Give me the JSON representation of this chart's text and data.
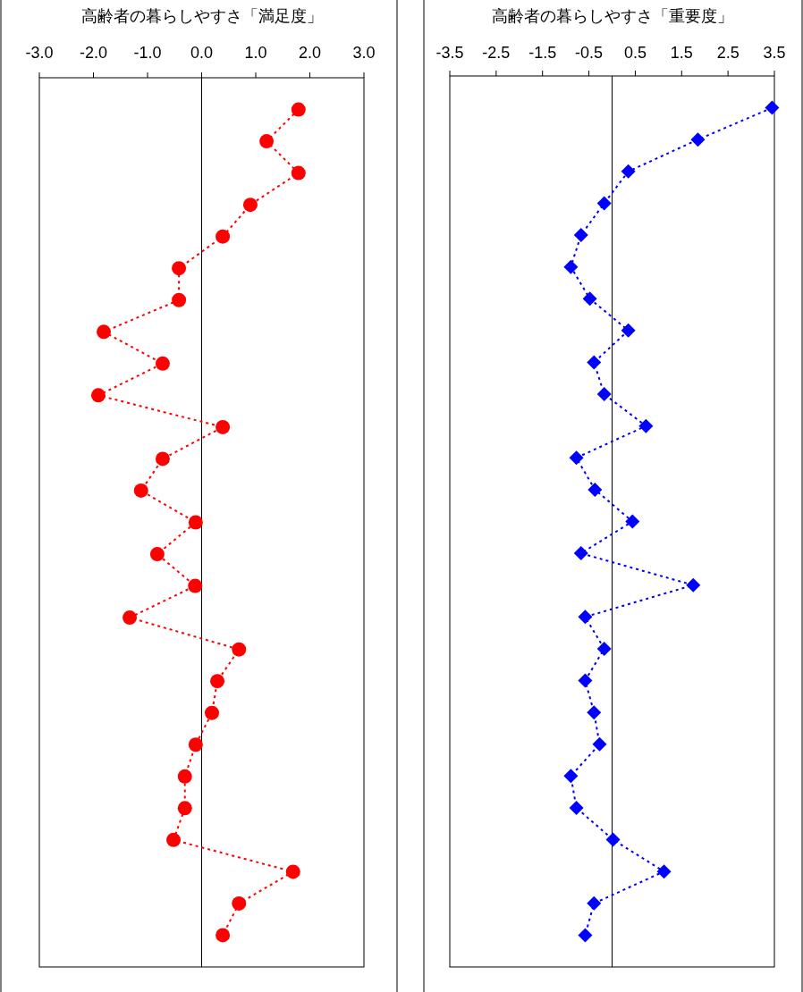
{
  "chart_data": [
    {
      "type": "line",
      "orientation": "horizontal",
      "title": "高齢者の暮らしやすさ「満足度」",
      "categories": [
        null,
        null,
        null,
        null,
        null,
        null,
        null,
        null,
        null,
        null,
        null,
        null,
        null,
        null,
        null,
        null,
        null,
        null,
        null,
        null,
        null,
        null,
        null,
        null,
        null,
        null,
        null
      ],
      "values": [
        1.79,
        1.2,
        1.79,
        0.9,
        0.39,
        -0.42,
        -0.42,
        -1.81,
        -0.72,
        -1.91,
        0.39,
        -0.72,
        -1.12,
        -0.11,
        -0.82,
        -0.12,
        -1.33,
        0.69,
        0.29,
        0.19,
        -0.11,
        -0.31,
        -0.31,
        -0.52,
        1.69,
        0.69,
        0.39
      ],
      "color": "#ff0000",
      "marker": "circle",
      "line_style": "dotted",
      "grid": false,
      "xlim": [
        -3,
        3
      ],
      "xticks": [
        {
          "value": -3,
          "label": "-3.0"
        },
        {
          "value": -2,
          "label": "-2.0"
        },
        {
          "value": -1,
          "label": "-1.0"
        },
        {
          "value": 0,
          "label": "0.0"
        },
        {
          "value": 1,
          "label": "1.0"
        },
        {
          "value": 2,
          "label": "2.0"
        },
        {
          "value": 3,
          "label": "3.0"
        }
      ],
      "ref_lines": [
        {
          "axis": "x",
          "value": 0,
          "color": "#000000"
        }
      ]
    },
    {
      "type": "line",
      "orientation": "horizontal",
      "title": "高齢者の暮らしやすさ「重要度」",
      "categories": [
        null,
        null,
        null,
        null,
        null,
        null,
        null,
        null,
        null,
        null,
        null,
        null,
        null,
        null,
        null,
        null,
        null,
        null,
        null,
        null,
        null,
        null,
        null,
        null,
        null,
        null,
        null
      ],
      "values": [
        3.45,
        1.85,
        0.35,
        -0.17,
        -0.67,
        -0.89,
        -0.48,
        0.35,
        -0.39,
        -0.17,
        0.73,
        -0.77,
        -0.37,
        0.44,
        -0.67,
        1.75,
        -0.58,
        -0.17,
        -0.58,
        -0.39,
        -0.27,
        -0.89,
        -0.77,
        0.02,
        1.12,
        -0.39,
        -0.58
      ],
      "color": "#0000ff",
      "marker": "diamond",
      "line_style": "dotted",
      "grid": false,
      "xlim": [
        -3.5,
        3.5
      ],
      "xticks": [
        -3.5,
        -2.5,
        -1.5,
        -0.5,
        0.5,
        1.5,
        2.5,
        3.5
      ],
      "ref_lines": [
        {
          "axis": "x",
          "value": 0,
          "color": "#000000"
        }
      ]
    }
  ]
}
